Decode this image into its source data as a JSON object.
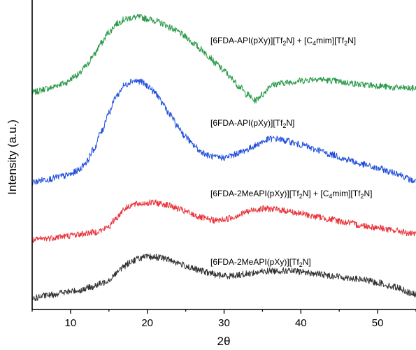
{
  "chart_data": {
    "type": "line",
    "title": "",
    "xlabel": "2θ",
    "ylabel": "Intensity (a.u.)",
    "xlim": [
      5,
      55
    ],
    "x_ticks": [
      10,
      20,
      30,
      40,
      50
    ],
    "y_ticks": [],
    "grid": false,
    "legend": "none",
    "series": [
      {
        "label": "[6FDA-API(pXy)][Tf2N] + [C4mim][Tf2N]",
        "label_parts": [
          "[6FDA-API(pXy)][Tf",
          "2",
          "N] + [C",
          "4",
          "mim][Tf",
          "2",
          "N]"
        ],
        "color": "#2a9a4a",
        "x": [
          5,
          7,
          9,
          11,
          12,
          13,
          14,
          15,
          16,
          17,
          18,
          19,
          20,
          21,
          22,
          23,
          24,
          25,
          26,
          27,
          28,
          29,
          30,
          31,
          32,
          33,
          34,
          35,
          36,
          37,
          38,
          39,
          40,
          42,
          44,
          46,
          48,
          50,
          52,
          55
        ],
        "y": [
          4.32,
          4.4,
          4.5,
          4.68,
          4.85,
          5.08,
          5.32,
          5.55,
          5.72,
          5.8,
          5.84,
          5.85,
          5.82,
          5.78,
          5.72,
          5.64,
          5.55,
          5.45,
          5.32,
          5.2,
          5.06,
          4.9,
          4.76,
          4.6,
          4.44,
          4.28,
          4.16,
          4.28,
          4.46,
          4.5,
          4.52,
          4.54,
          4.56,
          4.6,
          4.56,
          4.52,
          4.48,
          4.46,
          4.42,
          4.4
        ]
      },
      {
        "label": "[6FDA-API(pXy)][Tf2N]",
        "label_parts": [
          "[6FDA-API(pXy)][Tf",
          "2",
          "N]"
        ],
        "color": "#1f4fdc",
        "x": [
          5,
          7,
          9,
          10,
          11,
          12,
          13,
          14,
          15,
          16,
          17,
          18,
          19,
          20,
          21,
          22,
          23,
          24,
          25,
          26,
          27,
          28,
          29,
          30,
          31,
          32,
          33,
          34,
          35,
          36,
          37,
          38,
          40,
          42,
          44,
          46,
          48,
          50,
          52,
          55
        ],
        "y": [
          2.5,
          2.56,
          2.62,
          2.66,
          2.74,
          2.9,
          3.16,
          3.52,
          3.92,
          4.26,
          4.46,
          4.56,
          4.55,
          4.46,
          4.32,
          4.1,
          3.86,
          3.62,
          3.42,
          3.25,
          3.12,
          3.04,
          3.0,
          3.0,
          3.04,
          3.1,
          3.16,
          3.24,
          3.32,
          3.38,
          3.38,
          3.34,
          3.26,
          3.16,
          3.06,
          2.96,
          2.86,
          2.78,
          2.7,
          2.52
        ]
      },
      {
        "label": "[6FDA-2MeAPI(pXy)][Tf2N] + [C4mim][Tf2N]",
        "label_parts": [
          "[6FDA-2MeAPI(pXy)][Tf",
          "2",
          "N] + [C",
          "4",
          "mim][Tf",
          "2",
          "N]"
        ],
        "color": "#e8333a",
        "x": [
          5,
          7,
          9,
          11,
          13,
          14,
          15,
          16,
          17,
          18,
          19,
          20,
          21,
          22,
          23,
          24,
          25,
          26,
          27,
          28,
          29,
          30,
          31,
          32,
          33,
          34,
          35,
          36,
          37,
          38,
          40,
          42,
          44,
          46,
          48,
          50,
          52,
          55
        ],
        "y": [
          1.32,
          1.36,
          1.4,
          1.44,
          1.48,
          1.52,
          1.6,
          1.78,
          1.96,
          2.04,
          2.06,
          2.08,
          2.08,
          2.06,
          2.02,
          1.96,
          1.9,
          1.84,
          1.78,
          1.74,
          1.72,
          1.74,
          1.78,
          1.84,
          1.9,
          1.94,
          1.96,
          1.96,
          1.94,
          1.92,
          1.86,
          1.8,
          1.74,
          1.68,
          1.62,
          1.58,
          1.52,
          1.44
        ]
      },
      {
        "label": "[6FDA-2MeAPI(pXy)][Tf2N]",
        "label_parts": [
          "[6FDA-2MeAPI(pXy)][Tf",
          "2",
          "N]"
        ],
        "color": "#333333",
        "x": [
          5,
          7,
          9,
          11,
          13,
          14,
          15,
          16,
          17,
          18,
          19,
          20,
          21,
          22,
          23,
          24,
          25,
          26,
          27,
          28,
          29,
          30,
          31,
          32,
          33,
          34,
          35,
          36,
          37,
          38,
          40,
          42,
          44,
          46,
          48,
          50,
          52,
          55
        ],
        "y": [
          0.14,
          0.2,
          0.26,
          0.3,
          0.38,
          0.44,
          0.52,
          0.66,
          0.8,
          0.9,
          0.96,
          0.98,
          0.98,
          0.96,
          0.92,
          0.86,
          0.8,
          0.74,
          0.7,
          0.66,
          0.62,
          0.6,
          0.6,
          0.62,
          0.64,
          0.66,
          0.68,
          0.7,
          0.7,
          0.7,
          0.68,
          0.64,
          0.6,
          0.56,
          0.52,
          0.46,
          0.38,
          0.22
        ]
      }
    ]
  }
}
